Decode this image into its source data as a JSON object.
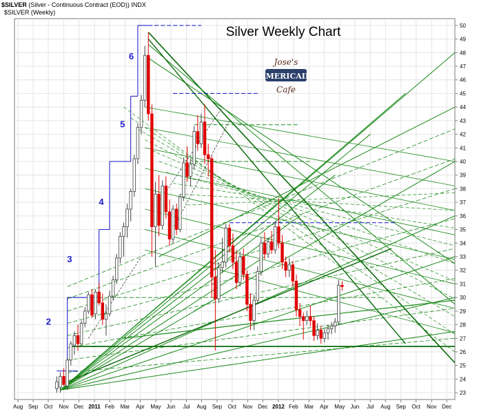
{
  "header": {
    "symbol": "$SILVER",
    "description": "(Silver - Continuous Contract (EOD))",
    "exchange": "INDX",
    "legend": "$SILVER (Weekly)"
  },
  "chart_data": {
    "type": "candlestick",
    "title": "Silver Weekly Chart",
    "xlabel": "",
    "ylabel": "",
    "ylim": [
      22.5,
      50.5
    ],
    "y_ticks": [
      23,
      24,
      25,
      26,
      27,
      28,
      29,
      30,
      31,
      32,
      33,
      34,
      35,
      36,
      37,
      38,
      39,
      40,
      41,
      42,
      43,
      44,
      45,
      46,
      47,
      48,
      49,
      50
    ],
    "x_tick_labels": [
      "Aug",
      "Sep",
      "Oct",
      "Nov",
      "Dec",
      "2011",
      "Feb",
      "Mar",
      "Apr",
      "May",
      "Jun",
      "Jul",
      "Aug",
      "Sep",
      "Oct",
      "Nov",
      "Dec",
      "2012",
      "Feb",
      "Mar",
      "Apr",
      "May",
      "Jun",
      "Jul",
      "Aug",
      "Sep",
      "Oct",
      "Nov",
      "Dec"
    ],
    "x_tick_weeks": [
      0,
      4.3,
      8.6,
      13,
      17.3,
      21.7,
      26,
      30.4,
      34.7,
      39.1,
      43.4,
      47.8,
      52.1,
      56.5,
      60.8,
      65.2,
      69.5,
      73.9,
      78.2,
      82.6,
      86.9,
      91.3,
      95.6,
      100,
      104.3,
      108.7,
      113,
      117.4,
      121.7
    ],
    "x_range_weeks": [
      -1,
      124
    ],
    "wave_labels": [
      {
        "label": "2",
        "week": 11,
        "price": 28
      },
      {
        "label": "3",
        "week": 17,
        "price": 32.6
      },
      {
        "label": "4",
        "week": 26,
        "price": 36.8
      },
      {
        "label": "5",
        "week": 32,
        "price": 42.5
      },
      {
        "label": "6",
        "week": 34.5,
        "price": 47.5
      }
    ],
    "step_levels": [
      {
        "from": 11,
        "to": 17,
        "price": 24.6
      },
      {
        "from": 14,
        "to": 23,
        "price": 30
      },
      {
        "from": 23,
        "to": 26,
        "price": 35
      },
      {
        "from": 26,
        "to": 32,
        "price": 40
      },
      {
        "from": 32,
        "to": 34,
        "price": 44.8
      },
      {
        "from": 34,
        "to": 37,
        "price": 50
      }
    ],
    "candles": [
      {
        "w": 11,
        "o": 23.3,
        "h": 24.2,
        "l": 23.0,
        "c": 23.8
      },
      {
        "w": 12,
        "o": 23.4,
        "h": 24.5,
        "l": 23.0,
        "c": 24.2
      },
      {
        "w": 13,
        "o": 24.2,
        "h": 24.8,
        "l": 23.5,
        "c": 23.6
      },
      {
        "w": 14,
        "o": 23.5,
        "h": 25.6,
        "l": 23.2,
        "c": 25.4
      },
      {
        "w": 15,
        "o": 25.4,
        "h": 26.8,
        "l": 25.0,
        "c": 26.6
      },
      {
        "w": 16,
        "o": 26.5,
        "h": 27.5,
        "l": 25.8,
        "c": 27.2
      },
      {
        "w": 17,
        "o": 27.2,
        "h": 28.0,
        "l": 26.1,
        "c": 26.6
      },
      {
        "w": 18,
        "o": 26.6,
        "h": 28.3,
        "l": 26.5,
        "c": 28.1
      },
      {
        "w": 19,
        "o": 28.1,
        "h": 29.3,
        "l": 27.8,
        "c": 29.0
      },
      {
        "w": 20,
        "o": 29.0,
        "h": 30.4,
        "l": 28.8,
        "c": 30.2
      },
      {
        "w": 21,
        "o": 30.2,
        "h": 30.6,
        "l": 28.5,
        "c": 28.7
      },
      {
        "w": 22,
        "o": 28.8,
        "h": 30.6,
        "l": 28.4,
        "c": 30.4
      },
      {
        "w": 23,
        "o": 30.4,
        "h": 31.1,
        "l": 29.4,
        "c": 29.6
      },
      {
        "w": 24,
        "o": 29.6,
        "h": 30.3,
        "l": 28.0,
        "c": 28.4
      },
      {
        "w": 25,
        "o": 28.4,
        "h": 29.5,
        "l": 27.2,
        "c": 28.8
      },
      {
        "w": 26,
        "o": 28.8,
        "h": 30.5,
        "l": 28.6,
        "c": 30.1
      },
      {
        "w": 27,
        "o": 30.1,
        "h": 31.6,
        "l": 29.8,
        "c": 31.3
      },
      {
        "w": 28,
        "o": 31.3,
        "h": 33.2,
        "l": 31.0,
        "c": 32.9
      },
      {
        "w": 29,
        "o": 32.9,
        "h": 34.8,
        "l": 32.5,
        "c": 34.5
      },
      {
        "w": 30,
        "o": 34.5,
        "h": 35.5,
        "l": 33.0,
        "c": 35.2
      },
      {
        "w": 31,
        "o": 35.2,
        "h": 36.9,
        "l": 34.4,
        "c": 36.5
      },
      {
        "w": 32,
        "o": 36.5,
        "h": 38.0,
        "l": 35.6,
        "c": 37.8
      },
      {
        "w": 33,
        "o": 37.8,
        "h": 40.5,
        "l": 37.4,
        "c": 40.2
      },
      {
        "w": 34,
        "o": 40.2,
        "h": 42.8,
        "l": 39.8,
        "c": 42.5
      },
      {
        "w": 35,
        "o": 42.5,
        "h": 44.9,
        "l": 42.0,
        "c": 44.5
      },
      {
        "w": 36,
        "o": 44.5,
        "h": 48.5,
        "l": 44.0,
        "c": 47.8
      },
      {
        "w": 37,
        "o": 47.8,
        "h": 49.5,
        "l": 43.0,
        "c": 43.5
      },
      {
        "w": 38,
        "o": 43.5,
        "h": 44.2,
        "l": 33.0,
        "c": 35.2
      },
      {
        "w": 39,
        "o": 35.2,
        "h": 38.5,
        "l": 32.3,
        "c": 37.6
      },
      {
        "w": 40,
        "o": 37.6,
        "h": 39.0,
        "l": 34.5,
        "c": 35.3
      },
      {
        "w": 41,
        "o": 35.3,
        "h": 38.6,
        "l": 35.0,
        "c": 38.2
      },
      {
        "w": 42,
        "o": 38.2,
        "h": 38.9,
        "l": 35.8,
        "c": 36.3
      },
      {
        "w": 43,
        "o": 36.3,
        "h": 37.2,
        "l": 33.8,
        "c": 34.3
      },
      {
        "w": 44,
        "o": 34.3,
        "h": 36.8,
        "l": 34.0,
        "c": 36.5
      },
      {
        "w": 45,
        "o": 36.5,
        "h": 36.9,
        "l": 34.6,
        "c": 35.0
      },
      {
        "w": 46,
        "o": 35.0,
        "h": 37.6,
        "l": 34.8,
        "c": 37.4
      },
      {
        "w": 47,
        "o": 37.4,
        "h": 40.3,
        "l": 37.1,
        "c": 39.9
      },
      {
        "w": 48,
        "o": 39.9,
        "h": 41.1,
        "l": 38.5,
        "c": 38.9
      },
      {
        "w": 49,
        "o": 38.9,
        "h": 40.2,
        "l": 38.2,
        "c": 39.8
      },
      {
        "w": 50,
        "o": 39.8,
        "h": 42.6,
        "l": 39.4,
        "c": 42.2
      },
      {
        "w": 51,
        "o": 42.2,
        "h": 43.4,
        "l": 40.8,
        "c": 41.3
      },
      {
        "w": 52,
        "o": 41.3,
        "h": 43.5,
        "l": 41.0,
        "c": 42.9
      },
      {
        "w": 53,
        "o": 42.9,
        "h": 44.2,
        "l": 39.8,
        "c": 40.5
      },
      {
        "w": 54,
        "o": 40.5,
        "h": 41.3,
        "l": 38.9,
        "c": 40.2
      },
      {
        "w": 55,
        "o": 40.2,
        "h": 40.4,
        "l": 30.0,
        "c": 31.5
      },
      {
        "w": 56,
        "o": 31.5,
        "h": 33.5,
        "l": 26.1,
        "c": 29.9
      },
      {
        "w": 57,
        "o": 29.9,
        "h": 32.6,
        "l": 29.6,
        "c": 32.2
      },
      {
        "w": 58,
        "o": 32.2,
        "h": 34.4,
        "l": 31.8,
        "c": 32.6
      },
      {
        "w": 59,
        "o": 32.6,
        "h": 35.4,
        "l": 32.2,
        "c": 35.1
      },
      {
        "w": 60,
        "o": 35.1,
        "h": 35.4,
        "l": 33.3,
        "c": 33.8
      },
      {
        "w": 61,
        "o": 33.8,
        "h": 34.7,
        "l": 32.1,
        "c": 32.6
      },
      {
        "w": 62,
        "o": 32.6,
        "h": 33.5,
        "l": 30.6,
        "c": 31.1
      },
      {
        "w": 63,
        "o": 31.1,
        "h": 33.4,
        "l": 30.8,
        "c": 33.0
      },
      {
        "w": 64,
        "o": 33.0,
        "h": 33.6,
        "l": 31.3,
        "c": 31.7
      },
      {
        "w": 65,
        "o": 31.7,
        "h": 32.0,
        "l": 29.0,
        "c": 29.5
      },
      {
        "w": 66,
        "o": 29.5,
        "h": 30.3,
        "l": 27.6,
        "c": 28.3
      },
      {
        "w": 67,
        "o": 28.3,
        "h": 30.2,
        "l": 27.6,
        "c": 29.8
      },
      {
        "w": 68,
        "o": 29.8,
        "h": 32.3,
        "l": 29.5,
        "c": 31.9
      },
      {
        "w": 69,
        "o": 31.9,
        "h": 34.4,
        "l": 31.6,
        "c": 34.0
      },
      {
        "w": 70,
        "o": 34.0,
        "h": 34.8,
        "l": 32.8,
        "c": 33.2
      },
      {
        "w": 71,
        "o": 33.2,
        "h": 34.4,
        "l": 32.9,
        "c": 34.1
      },
      {
        "w": 72,
        "o": 34.1,
        "h": 34.9,
        "l": 33.2,
        "c": 33.5
      },
      {
        "w": 73,
        "o": 33.5,
        "h": 35.6,
        "l": 33.2,
        "c": 35.2
      },
      {
        "w": 74,
        "o": 35.2,
        "h": 37.3,
        "l": 33.6,
        "c": 34.0
      },
      {
        "w": 75,
        "o": 34.0,
        "h": 34.6,
        "l": 32.1,
        "c": 32.6
      },
      {
        "w": 76,
        "o": 32.6,
        "h": 33.0,
        "l": 31.5,
        "c": 32.0
      },
      {
        "w": 77,
        "o": 32.0,
        "h": 32.9,
        "l": 31.5,
        "c": 32.4
      },
      {
        "w": 78,
        "o": 32.4,
        "h": 32.7,
        "l": 30.8,
        "c": 31.2
      },
      {
        "w": 79,
        "o": 31.2,
        "h": 31.7,
        "l": 28.6,
        "c": 29.1
      },
      {
        "w": 80,
        "o": 29.1,
        "h": 29.6,
        "l": 27.9,
        "c": 28.6
      },
      {
        "w": 81,
        "o": 28.6,
        "h": 28.9,
        "l": 26.9,
        "c": 28.3
      },
      {
        "w": 82,
        "o": 28.3,
        "h": 29.0,
        "l": 28.0,
        "c": 28.6
      },
      {
        "w": 83,
        "o": 28.6,
        "h": 29.4,
        "l": 27.9,
        "c": 28.3
      },
      {
        "w": 84,
        "o": 28.3,
        "h": 28.6,
        "l": 26.8,
        "c": 27.2
      },
      {
        "w": 85,
        "o": 27.2,
        "h": 28.1,
        "l": 26.9,
        "c": 27.6
      },
      {
        "w": 86,
        "o": 27.6,
        "h": 27.9,
        "l": 26.6,
        "c": 27.0
      },
      {
        "w": 87,
        "o": 27.0,
        "h": 27.7,
        "l": 26.7,
        "c": 27.4
      },
      {
        "w": 88,
        "o": 27.4,
        "h": 28.0,
        "l": 26.9,
        "c": 27.7
      },
      {
        "w": 89,
        "o": 27.7,
        "h": 28.2,
        "l": 27.3,
        "c": 27.9
      },
      {
        "w": 90,
        "o": 27.9,
        "h": 28.5,
        "l": 27.4,
        "c": 28.2
      },
      {
        "w": 91,
        "o": 28.2,
        "h": 31.3,
        "l": 28.0,
        "c": 30.9
      },
      {
        "w": 92,
        "o": 30.9,
        "h": 31.2,
        "l": 30.5,
        "c": 30.8
      }
    ],
    "colors": {
      "up": "#ffffff",
      "down": "#e00000",
      "outline": "#404040",
      "blue": "#1010c8",
      "green": "#1a8a1a",
      "dark_green": "#0a6a0a",
      "grid": "#e4e4e4",
      "frame": "#7a7a7a",
      "wave_text": "#2020d0"
    }
  },
  "logo": {
    "line1": "Jose's",
    "line2": "AMERICAIN",
    "line3": "Cafe"
  }
}
